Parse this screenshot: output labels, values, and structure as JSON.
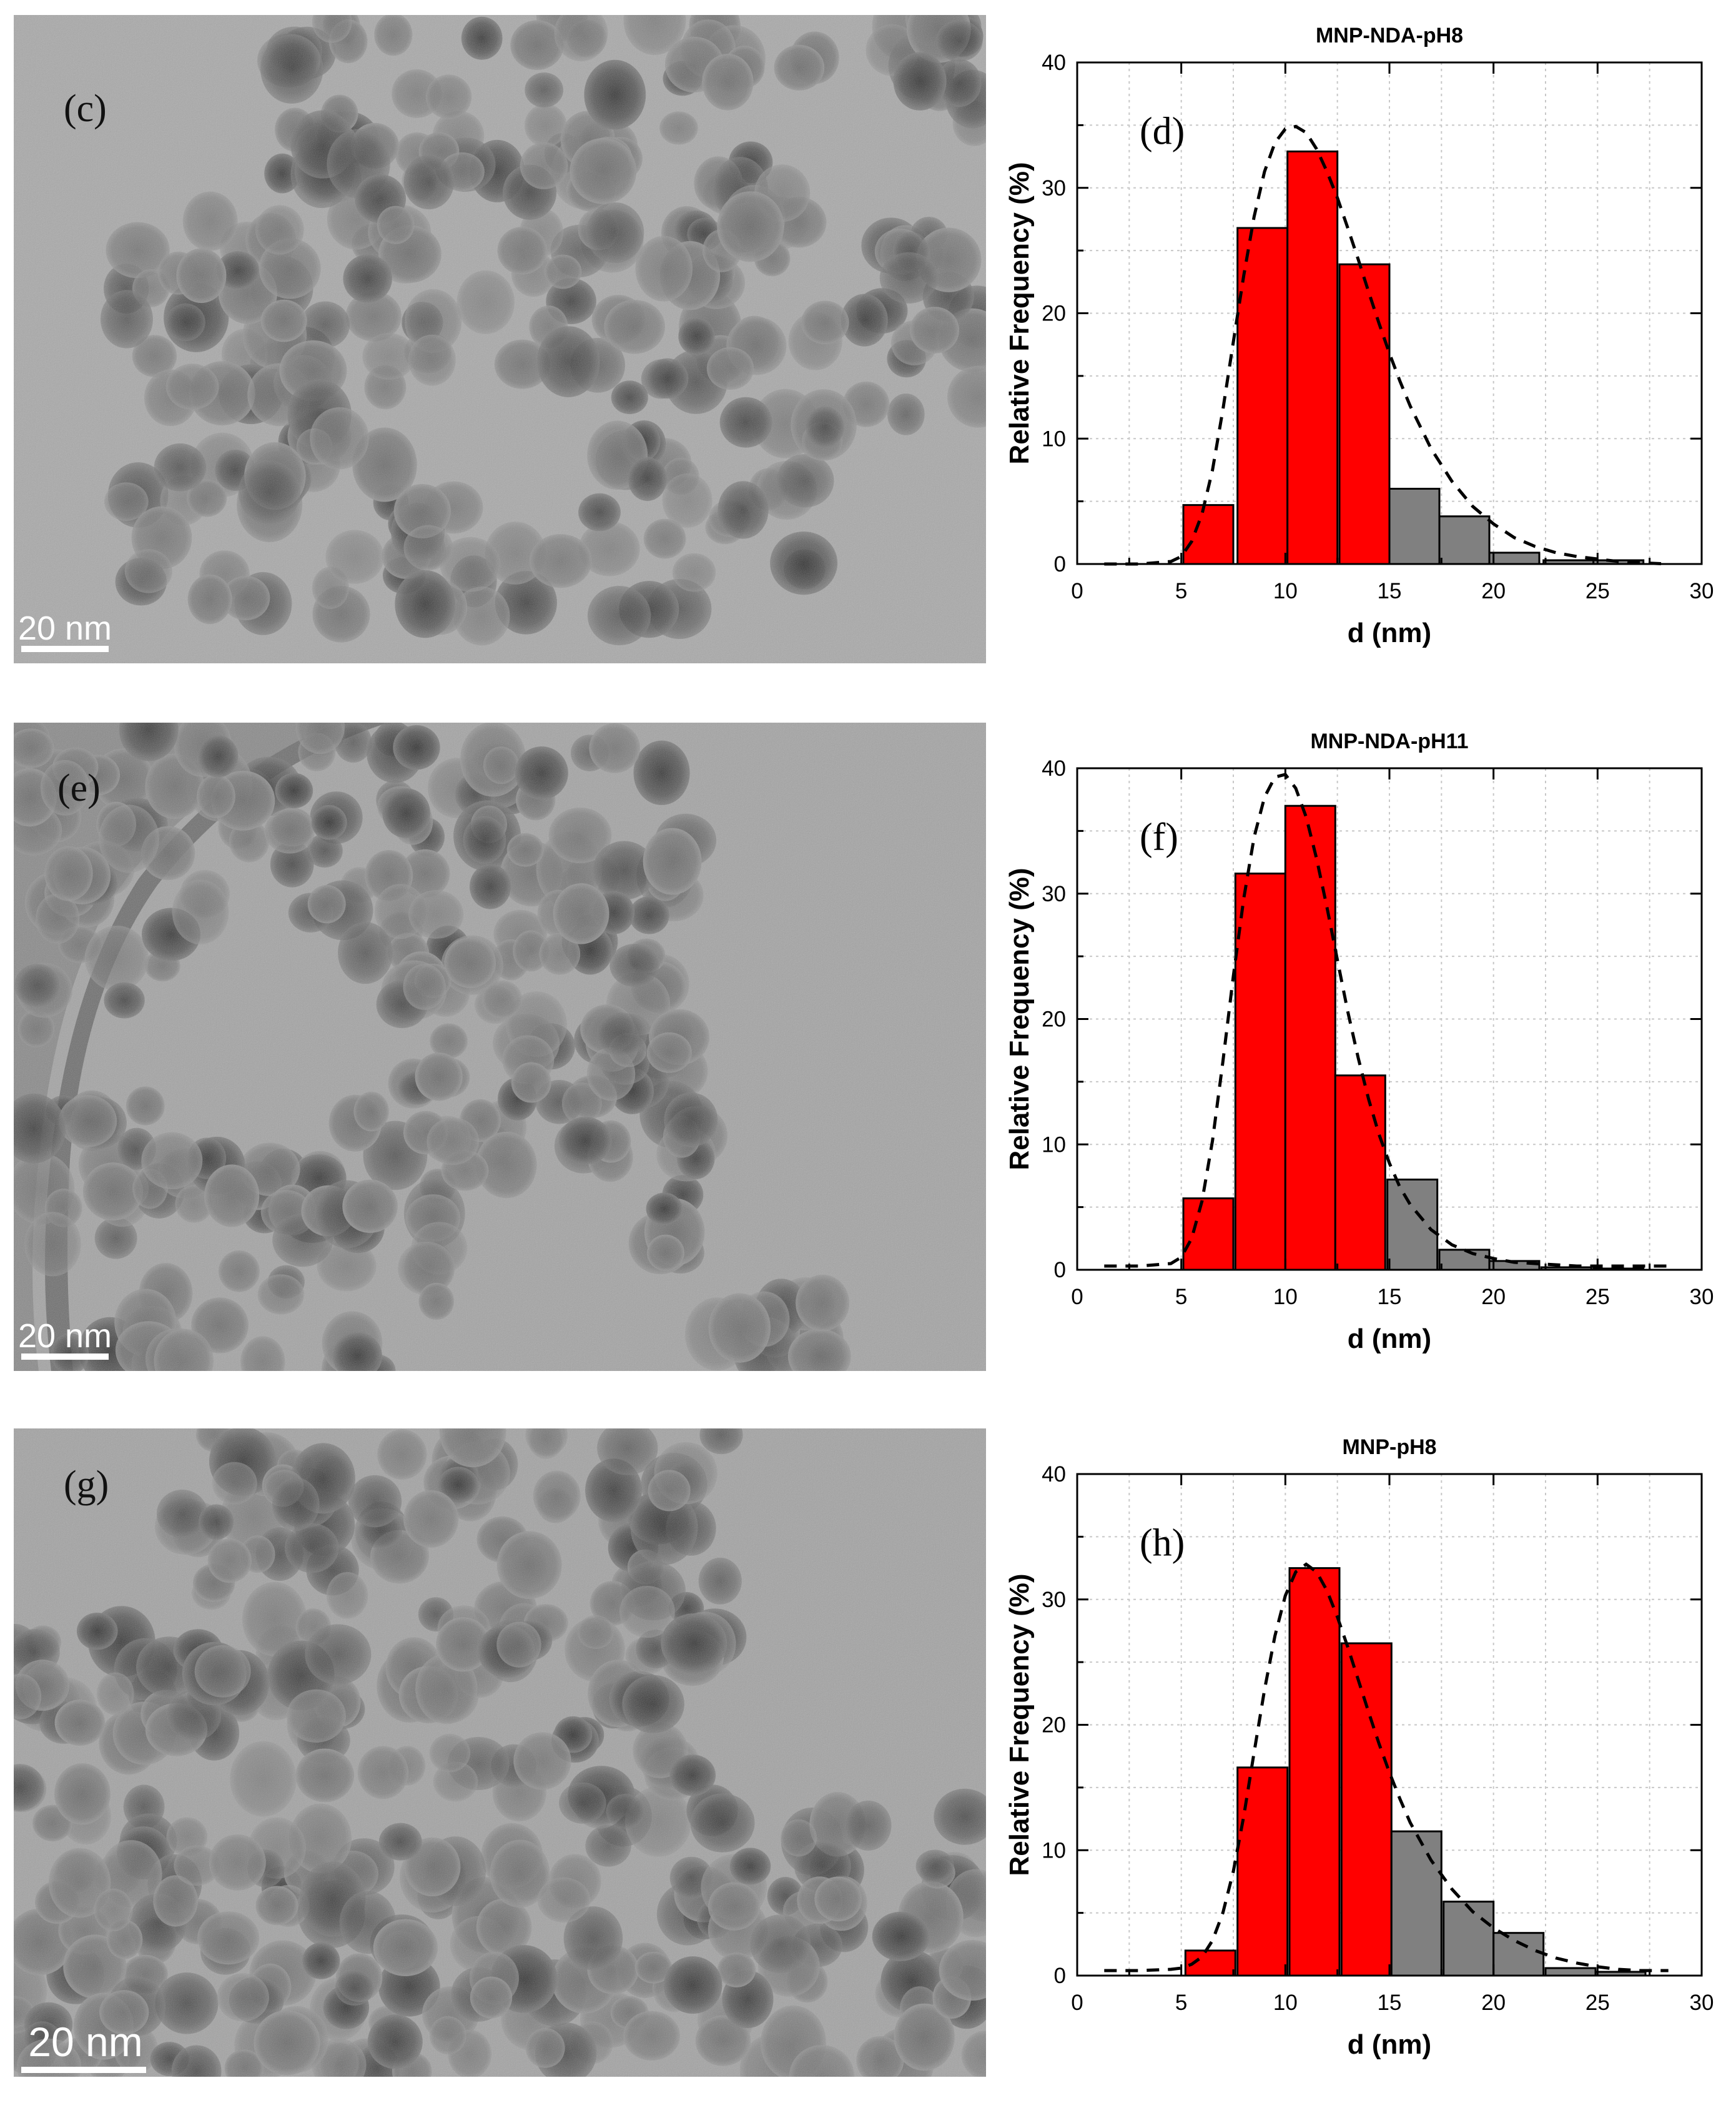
{
  "panels": [
    {
      "tem_label": "(c)",
      "scale_bar": "20 nm"
    },
    {
      "tem_label": "(e)",
      "scale_bar": "20 nm"
    },
    {
      "tem_label": "(g)",
      "scale_bar": "20 nm"
    }
  ],
  "colors": {
    "highlight_bar": "#ff0000",
    "other_bar": "#808080",
    "fit_line": "#000000"
  },
  "chart_data": [
    {
      "type": "bar",
      "title": "MNP-NDA-pH8",
      "panel_label": "(d)",
      "xlabel": "d (nm)",
      "ylabel": "Relative Frequency (%)",
      "xlim": [
        0,
        30
      ],
      "ylim": [
        0,
        40
      ],
      "xticks": [
        0,
        5,
        10,
        15,
        20,
        25,
        30
      ],
      "yticks": [
        0,
        10,
        20,
        30,
        40
      ],
      "grid": true,
      "bin_width": 2.4,
      "x": [
        6.3,
        8.9,
        11.3,
        13.8,
        16.2,
        18.6,
        21.0,
        23.6,
        26.0
      ],
      "values": [
        4.7,
        26.8,
        32.9,
        23.9,
        6.0,
        3.8,
        0.9,
        0.3,
        0.3
      ],
      "highlighted": [
        true,
        true,
        true,
        true,
        false,
        false,
        false,
        false,
        false
      ],
      "fit_curve": {
        "style": "dashed",
        "x": [
          1.3,
          3,
          4.5,
          5,
          5.5,
          6,
          6.5,
          7,
          7.5,
          8,
          8.5,
          9,
          9.5,
          10,
          10.5,
          11,
          11.5,
          12,
          12.5,
          13,
          13.5,
          14,
          14.5,
          15,
          15.5,
          16,
          17,
          18,
          19,
          20,
          21,
          22,
          23,
          24,
          25,
          26,
          27,
          28.4
        ],
        "y": [
          0.0,
          0.0,
          0.2,
          0.6,
          1.8,
          4.0,
          7.5,
          12.3,
          17.7,
          23.0,
          27.7,
          31.3,
          33.6,
          34.7,
          34.9,
          34.4,
          33.1,
          31.3,
          29.2,
          26.8,
          24.3,
          21.7,
          19.2,
          16.8,
          14.6,
          12.6,
          9.2,
          6.6,
          4.6,
          3.2,
          2.1,
          1.4,
          0.9,
          0.6,
          0.4,
          0.2,
          0.1,
          0.0
        ]
      }
    },
    {
      "type": "bar",
      "title": "MNP-NDA-pH11",
      "panel_label": "(f)",
      "xlabel": "d (nm)",
      "ylabel": "Relative Frequency (%)",
      "xlim": [
        0,
        30
      ],
      "ylim": [
        0,
        40
      ],
      "xticks": [
        0,
        5,
        10,
        15,
        20,
        25,
        30
      ],
      "yticks": [
        0,
        10,
        20,
        30,
        40
      ],
      "grid": true,
      "bin_width": 2.4,
      "x": [
        6.3,
        8.8,
        11.2,
        13.6,
        16.1,
        18.6,
        21.0,
        23.5,
        26.0
      ],
      "values": [
        5.7,
        31.6,
        37.0,
        15.5,
        7.2,
        1.6,
        0.7,
        0.2,
        0.1
      ],
      "highlighted": [
        true,
        true,
        true,
        true,
        false,
        false,
        false,
        false,
        false
      ],
      "fit_curve": {
        "style": "dashed",
        "x": [
          1.3,
          3,
          4.5,
          5,
          5.5,
          6,
          6.5,
          7,
          7.5,
          8,
          8.5,
          9,
          9.5,
          10,
          10.5,
          11,
          11.5,
          12,
          12.5,
          13,
          13.5,
          14,
          14.5,
          15,
          15.5,
          16,
          17,
          18,
          19,
          20,
          21,
          22,
          23,
          24,
          25,
          26,
          27,
          28.4
        ],
        "y": [
          0.3,
          0.3,
          0.5,
          1.0,
          2.5,
          5.5,
          10.3,
          16.6,
          23.4,
          29.6,
          34.5,
          37.7,
          39.3,
          39.5,
          38.4,
          36.1,
          32.8,
          28.9,
          24.7,
          20.6,
          16.9,
          13.6,
          10.8,
          8.5,
          6.6,
          5.2,
          3.2,
          2.0,
          1.3,
          0.9,
          0.6,
          0.5,
          0.4,
          0.3,
          0.3,
          0.3,
          0.3,
          0.3
        ]
      }
    },
    {
      "type": "bar",
      "title": "MNP-pH8",
      "panel_label": "(h)",
      "xlabel": "d (nm)",
      "ylabel": "Relative Frequency (%)",
      "xlim": [
        0,
        30
      ],
      "ylim": [
        0,
        40
      ],
      "xticks": [
        0,
        5,
        10,
        15,
        20,
        25,
        30
      ],
      "yticks": [
        0,
        10,
        20,
        30,
        40
      ],
      "grid": true,
      "bin_width": 2.4,
      "x": [
        6.4,
        8.9,
        11.4,
        13.9,
        16.3,
        18.8,
        21.2,
        23.7,
        26.1
      ],
      "values": [
        2.0,
        16.6,
        32.5,
        26.5,
        11.5,
        5.9,
        3.4,
        0.6,
        0.3
      ],
      "highlighted": [
        true,
        true,
        true,
        true,
        false,
        false,
        false,
        false,
        false
      ],
      "fit_curve": {
        "style": "dashed",
        "x": [
          1.3,
          3,
          4.5,
          5,
          5.5,
          6,
          6.5,
          7,
          7.5,
          8,
          8.5,
          9,
          9.5,
          10,
          10.5,
          11,
          11.5,
          12,
          12.5,
          13,
          13.5,
          14,
          14.5,
          15,
          15.5,
          16,
          17,
          18,
          19,
          20,
          21,
          22,
          23,
          24,
          25,
          26,
          27,
          28.4
        ],
        "y": [
          0.4,
          0.4,
          0.5,
          0.6,
          0.9,
          1.5,
          2.8,
          5.0,
          8.3,
          12.7,
          17.8,
          22.8,
          27.1,
          30.3,
          32.2,
          32.8,
          32.2,
          30.7,
          28.6,
          26.2,
          23.6,
          21.0,
          18.5,
          16.2,
          14.1,
          12.2,
          9.2,
          6.9,
          5.1,
          3.8,
          2.8,
          2.0,
          1.4,
          1.0,
          0.7,
          0.5,
          0.4,
          0.4
        ]
      }
    }
  ]
}
